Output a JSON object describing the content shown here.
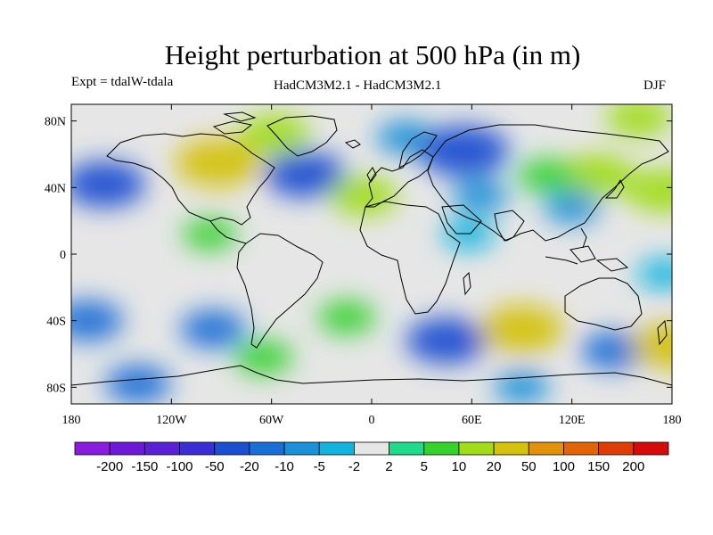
{
  "figure": {
    "title": "Height perturbation at 500 hPa (in m)",
    "experiment": "Expt = tdalW-tdala",
    "models": "HadCM3M2.1 - HadCM3M2.1",
    "season": "DJF"
  },
  "axes": {
    "lat_ticks": [
      "80N",
      "40N",
      "0",
      "40S",
      "80S"
    ],
    "lon_ticks": [
      "180",
      "120W",
      "60W",
      "0",
      "60E",
      "120E",
      "180"
    ]
  },
  "colorbar": {
    "labels": [
      "-200",
      "-150",
      "-100",
      "-50",
      "-20",
      "-10",
      "-5",
      "-2",
      "2",
      "5",
      "10",
      "20",
      "50",
      "100",
      "150",
      "200"
    ],
    "colors": [
      "#8a1ce0",
      "#6e19d9",
      "#5a20d6",
      "#3a2fd6",
      "#1b4fd1",
      "#1a6fd6",
      "#1c90d8",
      "#12b4df",
      "#e6e6e6",
      "#1edb8a",
      "#35d22e",
      "#a0dc18",
      "#d4c20c",
      "#e39108",
      "#e26406",
      "#e03d06",
      "#d80b0b"
    ]
  },
  "chart_data": {
    "type": "heatmap",
    "title": "Height perturbation at 500 hPa (in m)",
    "xlabel": "",
    "ylabel": "",
    "x_range": [
      -180,
      180
    ],
    "y_range": [
      -90,
      90
    ],
    "contour_levels": [
      -200,
      -150,
      -100,
      -50,
      -20,
      -10,
      -5,
      -2,
      2,
      5,
      10,
      20,
      50,
      100,
      150,
      200
    ],
    "anomaly_centers": [
      {
        "lon": -160,
        "lat": 42,
        "value": -22
      },
      {
        "lon": -92,
        "lat": 55,
        "value": 25
      },
      {
        "lon": -97,
        "lat": 12,
        "value": 5
      },
      {
        "lon": -58,
        "lat": 72,
        "value": 15
      },
      {
        "lon": -40,
        "lat": 48,
        "value": -22
      },
      {
        "lon": -5,
        "lat": 35,
        "value": 14
      },
      {
        "lon": 20,
        "lat": 70,
        "value": -7
      },
      {
        "lon": 55,
        "lat": 62,
        "value": -28
      },
      {
        "lon": 65,
        "lat": 35,
        "value": -6
      },
      {
        "lon": 135,
        "lat": 47,
        "value": 18
      },
      {
        "lon": 105,
        "lat": 47,
        "value": 8
      },
      {
        "lon": 120,
        "lat": 28,
        "value": -6
      },
      {
        "lon": 175,
        "lat": 38,
        "value": 18
      },
      {
        "lon": 160,
        "lat": 82,
        "value": 12
      },
      {
        "lon": 58,
        "lat": 12,
        "value": -4
      },
      {
        "lon": 175,
        "lat": -12,
        "value": -4
      },
      {
        "lon": -170,
        "lat": -40,
        "value": -15
      },
      {
        "lon": -95,
        "lat": -45,
        "value": -12
      },
      {
        "lon": -15,
        "lat": -38,
        "value": 7
      },
      {
        "lon": 45,
        "lat": -52,
        "value": -22
      },
      {
        "lon": 90,
        "lat": -45,
        "value": 24
      },
      {
        "lon": 145,
        "lat": -58,
        "value": -12
      },
      {
        "lon": 180,
        "lat": -55,
        "value": 22
      },
      {
        "lon": -140,
        "lat": -78,
        "value": -12
      },
      {
        "lon": -65,
        "lat": -62,
        "value": 8
      },
      {
        "lon": 90,
        "lat": -80,
        "value": -6
      }
    ]
  }
}
